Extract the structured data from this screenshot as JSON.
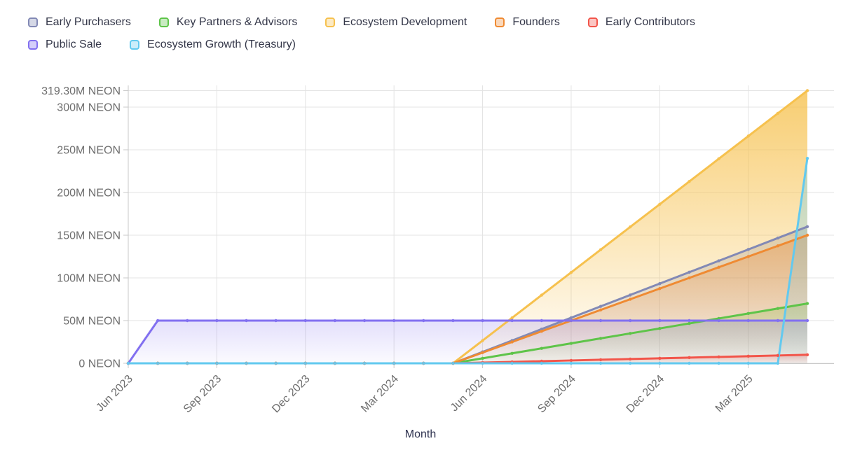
{
  "chart_data": {
    "type": "area",
    "title": "",
    "xlabel": "Month",
    "ylabel": "",
    "unit": "M NEON",
    "grid": true,
    "legend_position": "top-left",
    "ylim": [
      0,
      319.3
    ],
    "x": [
      "Jun 2023",
      "Jul 2023",
      "Aug 2023",
      "Sep 2023",
      "Oct 2023",
      "Nov 2023",
      "Dec 2023",
      "Jan 2024",
      "Feb 2024",
      "Mar 2024",
      "Apr 2024",
      "May 2024",
      "Jun 2024",
      "Jul 2024",
      "Aug 2024",
      "Sep 2024",
      "Oct 2024",
      "Nov 2024",
      "Dec 2024",
      "Jan 2025",
      "Feb 2025",
      "Mar 2025",
      "Apr 2025",
      "May 2025"
    ],
    "x_tick_indices": [
      0,
      3,
      6,
      9,
      12,
      15,
      18,
      21
    ],
    "x_tick_labels": [
      "Jun 2023",
      "Sep 2023",
      "Dec 2023",
      "Mar 2024",
      "Jun 2024",
      "Sep 2024",
      "Dec 2024",
      "Mar 2025"
    ],
    "y_ticks": [
      {
        "value": 0,
        "label": "0 NEON"
      },
      {
        "value": 50,
        "label": "50M NEON"
      },
      {
        "value": 100,
        "label": "100M NEON"
      },
      {
        "value": 150,
        "label": "150M NEON"
      },
      {
        "value": 200,
        "label": "200M NEON"
      },
      {
        "value": 250,
        "label": "250M NEON"
      },
      {
        "value": 300,
        "label": "300M NEON"
      },
      {
        "value": 319.3,
        "label": "319.30M NEON"
      }
    ],
    "series": [
      {
        "name": "Early Purchasers",
        "color": "#8289b5",
        "values": [
          0,
          0,
          0,
          0,
          0,
          0,
          0,
          0,
          0,
          0,
          0,
          0,
          13.33,
          26.67,
          40,
          53.33,
          66.67,
          80,
          93.33,
          106.67,
          120,
          133.33,
          146.67,
          160
        ]
      },
      {
        "name": "Key Partners & Advisors",
        "color": "#5ec449",
        "values": [
          0,
          0,
          0,
          0,
          0,
          0,
          0,
          0,
          0,
          0,
          0,
          0,
          5.83,
          11.67,
          17.5,
          23.33,
          29.17,
          35,
          40.83,
          46.67,
          52.5,
          58.33,
          64.17,
          70
        ]
      },
      {
        "name": "Ecosystem Development",
        "color": "#f6c14e",
        "values": [
          0,
          0,
          0,
          0,
          0,
          0,
          0,
          0,
          0,
          0,
          0,
          0,
          26.61,
          53.22,
          79.83,
          106.43,
          133.04,
          159.65,
          186.26,
          212.87,
          239.48,
          266.08,
          292.69,
          319.3
        ]
      },
      {
        "name": "Founders",
        "color": "#ef8a32",
        "values": [
          0,
          0,
          0,
          0,
          0,
          0,
          0,
          0,
          0,
          0,
          0,
          0,
          12.5,
          25,
          37.5,
          50,
          62.5,
          75,
          87.5,
          100,
          112.5,
          125,
          137.5,
          150
        ]
      },
      {
        "name": "Early Contributors",
        "color": "#f2554a",
        "values": [
          0,
          0,
          0,
          0,
          0,
          0,
          0,
          0,
          0,
          0,
          0,
          0,
          0.83,
          1.67,
          2.5,
          3.33,
          4.17,
          5,
          5.83,
          6.67,
          7.5,
          8.33,
          9.17,
          10
        ]
      },
      {
        "name": "Public Sale",
        "color": "#8270f0",
        "values": [
          0,
          50,
          50,
          50,
          50,
          50,
          50,
          50,
          50,
          50,
          50,
          50,
          50,
          50,
          50,
          50,
          50,
          50,
          50,
          50,
          50,
          50,
          50,
          50
        ]
      },
      {
        "name": "Ecosystem Growth (Treasury)",
        "color": "#62c9ef",
        "values": [
          0,
          0,
          0,
          0,
          0,
          0,
          0,
          0,
          0,
          0,
          0,
          0,
          0,
          0,
          0,
          0,
          0,
          0,
          0,
          0,
          0,
          0,
          0,
          240
        ]
      }
    ]
  }
}
